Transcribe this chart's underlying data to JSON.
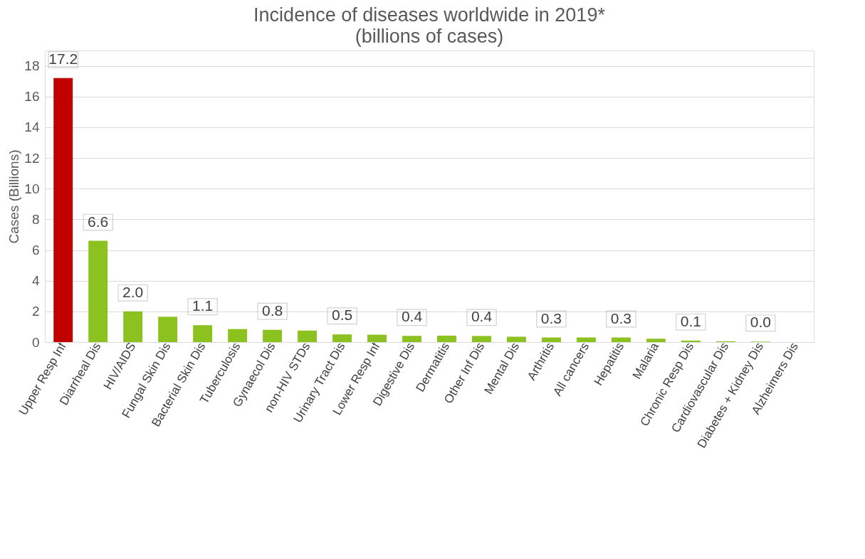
{
  "chart_data": {
    "type": "bar",
    "title": "Incidence of diseases worldwide in 2019*",
    "subtitle": "(billions of cases)",
    "ylabel": "Cases (Billions)",
    "categories": [
      "Upper Resp Inf",
      "Diarrheal Dis",
      "HIV/AIDS",
      "Fungal Skin Dis",
      "Bacterial Skin Dis",
      "Tuberculosis",
      "Gynaecol Dis",
      "non-HIV STDs",
      "Urinary Tract Dis",
      "Lower Resp Inf",
      "Digestive Dis",
      "Dermatitis",
      "Other Inf Dis",
      "Mental Dis",
      "Arthritis",
      "All cancers",
      "Hepatitis",
      "Malaria",
      "Chronic Resp Dis",
      "Cardiovascular Dis",
      "Diabetes + Kidney Dis",
      "Alzheimers Dis"
    ],
    "values": [
      17.2,
      6.6,
      2.0,
      1.65,
      1.1,
      0.85,
      0.8,
      0.75,
      0.5,
      0.48,
      0.4,
      0.42,
      0.4,
      0.35,
      0.3,
      0.3,
      0.3,
      0.22,
      0.1,
      0.05,
      0.03,
      null
    ],
    "colors": [
      "#c00000",
      "#8cc21f",
      "#8cc21f",
      "#8cc21f",
      "#8cc21f",
      "#8cc21f",
      "#8cc21f",
      "#8cc21f",
      "#8cc21f",
      "#8cc21f",
      "#8cc21f",
      "#8cc21f",
      "#8cc21f",
      "#8cc21f",
      "#8cc21f",
      "#8cc21f",
      "#8cc21f",
      "#8cc21f",
      "#8cc21f",
      "#8cc21f",
      "#8cc21f",
      "#8cc21f"
    ],
    "value_labels": [
      "17.2",
      "6.6",
      "2.0",
      null,
      "1.1",
      null,
      "0.8",
      null,
      "0.5",
      null,
      "0.4",
      null,
      "0.4",
      null,
      "0.3",
      null,
      "0.3",
      null,
      "0.1",
      null,
      "0.0",
      null
    ],
    "ylim": [
      0,
      19
    ],
    "yticks": [
      0,
      2,
      4,
      6,
      8,
      10,
      12,
      14,
      16,
      18
    ],
    "grid": "y"
  }
}
